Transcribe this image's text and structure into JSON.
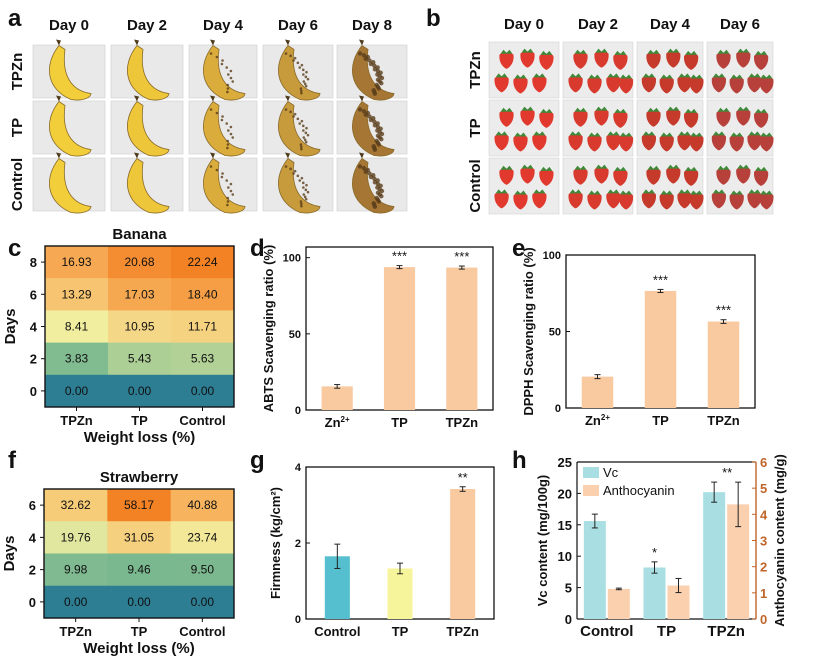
{
  "colors": {
    "orange_bar": "#f9c9a0",
    "teal_bar": "#56bfcf",
    "yellow_bar": "#f7f59c",
    "vc": "#a9dfe2",
    "anthocyanin": "#fbd0ae",
    "brown_axis": "#c0652a",
    "bg_photo": "#ebebeb"
  },
  "panels": {
    "a": "a",
    "b": "b",
    "c": "c",
    "d": "d",
    "e": "e",
    "f": "f",
    "g": "g",
    "h": "h"
  },
  "photos": {
    "a": {
      "days": [
        "Day 0",
        "Day 2",
        "Day 4",
        "Day 6",
        "Day 8"
      ],
      "rows": [
        "TPZn",
        "TP",
        "Control"
      ]
    },
    "b": {
      "days": [
        "Day 0",
        "Day 2",
        "Day 4",
        "Day 6"
      ],
      "rows": [
        "TPZn",
        "TP",
        "Control"
      ]
    }
  },
  "chart_data": [
    {
      "id": "c",
      "type": "heatmap",
      "title": "Banana",
      "xlabel": "Weight loss (%)",
      "ylabel": "Days",
      "x_categories": [
        "TPZn",
        "TP",
        "Control"
      ],
      "y_categories": [
        "8",
        "6",
        "4",
        "2",
        "0"
      ],
      "rows": [
        [
          "16.93",
          "20.68",
          "22.24"
        ],
        [
          "13.29",
          "17.03",
          "18.40"
        ],
        [
          "8.41",
          "10.95",
          "11.71"
        ],
        [
          "3.83",
          "5.43",
          "5.63"
        ],
        [
          "0.00",
          "0.00",
          "0.00"
        ]
      ]
    },
    {
      "id": "d",
      "type": "bar",
      "xlabel": "",
      "ylabel": "ABTS Scavenging ratio (%)",
      "ylim": [
        0,
        107
      ],
      "categories": [
        "Zn2+",
        "TP",
        "TPZn"
      ],
      "values": [
        15.5,
        93.8,
        93.5
      ],
      "errors": [
        1.2,
        1.0,
        1.0
      ],
      "yticks": [
        "0",
        "50",
        "100"
      ],
      "sig": [
        "",
        "***",
        "***"
      ]
    },
    {
      "id": "e",
      "type": "bar",
      "xlabel": "",
      "ylabel": "DPPH Scavenging ratio (%)",
      "ylim": [
        0,
        100
      ],
      "categories": [
        "Zn2+",
        "TP",
        "TPZn"
      ],
      "values": [
        20.5,
        76.5,
        56.5
      ],
      "errors": [
        1.3,
        1.0,
        1.2
      ],
      "yticks": [
        "0",
        "50",
        "100"
      ],
      "sig": [
        "",
        "***",
        "***"
      ]
    },
    {
      "id": "f",
      "type": "heatmap",
      "title": "Strawberry",
      "xlabel": "Weight loss (%)",
      "ylabel": "Days",
      "x_categories": [
        "TPZn",
        "TP",
        "Control"
      ],
      "y_categories": [
        "6",
        "4",
        "2",
        "0"
      ],
      "rows": [
        [
          "32.62",
          "58.17",
          "40.88"
        ],
        [
          "19.76",
          "31.05",
          "23.74"
        ],
        [
          "9.98",
          "9.46",
          "9.50"
        ],
        [
          "0.00",
          "0.00",
          "0.00"
        ]
      ]
    },
    {
      "id": "g",
      "type": "bar",
      "xlabel": "",
      "ylabel": "Firmness (kg/cm²)",
      "ylim": [
        0,
        4
      ],
      "categories": [
        "Control",
        "TP",
        "TPZn"
      ],
      "values": [
        1.65,
        1.33,
        3.42
      ],
      "errors": [
        0.32,
        0.14,
        0.06
      ],
      "yticks": [
        "0",
        "2",
        "4"
      ],
      "sig": [
        "",
        "",
        "**"
      ]
    },
    {
      "id": "h",
      "type": "bar",
      "xlabel": "",
      "ylabel": "Vc content (mg/100g)",
      "y2label": "Anthocyanin content (mg/g)",
      "ylim": [
        0,
        25
      ],
      "y2lim": [
        0,
        6
      ],
      "categories": [
        "Control",
        "TP",
        "TPZn"
      ],
      "series": [
        {
          "name": "Vc",
          "values": [
            15.6,
            8.2,
            20.2
          ],
          "errors": [
            1.1,
            0.9,
            1.6
          ]
        },
        {
          "name": "Anthocyanin",
          "values": [
            1.15,
            1.28,
            4.38
          ],
          "errors": [
            0.03,
            0.27,
            0.85
          ]
        }
      ],
      "yticks": [
        "0",
        "5",
        "10",
        "15",
        "20",
        "25"
      ],
      "y2ticks": [
        "0",
        "1",
        "2",
        "3",
        "4",
        "5",
        "6"
      ],
      "sig": [
        "",
        "*",
        "**"
      ]
    }
  ]
}
